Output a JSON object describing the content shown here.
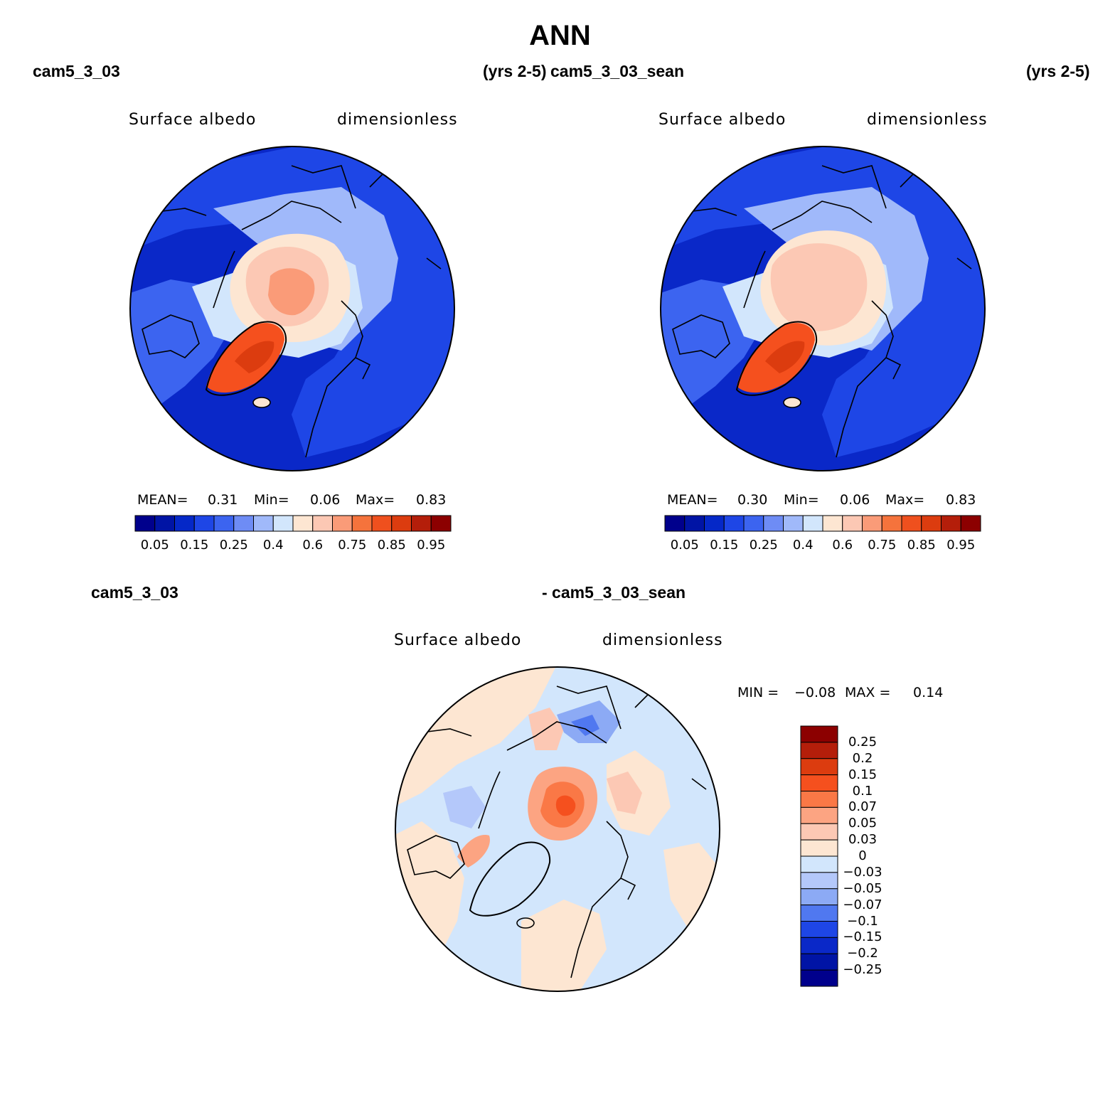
{
  "figure": {
    "title": "ANN",
    "top_left_case": "cam5_3_03",
    "top_left_years": "(yrs 2-5)",
    "top_right_case": "cam5_3_03_sean",
    "top_right_years": "(yrs 2-5)",
    "diff_left_case": "cam5_3_03",
    "diff_right_case": "- cam5_3_03_sean"
  },
  "panels": [
    {
      "variable": "Surface albedo",
      "units": "dimensionless",
      "mean_label": "MEAN=",
      "mean_value": "0.31",
      "min_label": "Min=",
      "min_value": "0.06",
      "max_label": "Max=",
      "max_value": "0.83"
    },
    {
      "variable": "Surface albedo",
      "units": "dimensionless",
      "mean_label": "MEAN=",
      "mean_value": "0.30",
      "min_label": "Min=",
      "min_value": "0.06",
      "max_label": "Max=",
      "max_value": "0.83"
    }
  ],
  "diff_panel": {
    "variable": "Surface albedo",
    "units": "dimensionless",
    "min_label": "MIN =",
    "min_value": "−0.08",
    "max_label": "MAX =",
    "max_value": "0.14"
  },
  "colorbar_main": {
    "colors": [
      "#00008c",
      "#0014a5",
      "#0528c8",
      "#1e46e6",
      "#3c64f0",
      "#6e8cf5",
      "#a0b9fa",
      "#d2e6fc",
      "#fde6d2",
      "#fcc8b4",
      "#fa9b78",
      "#f5733c",
      "#ef501e",
      "#dc3c0f",
      "#b41e0a",
      "#8c0000"
    ],
    "tick_labels": [
      "0.05",
      "0.15",
      "0.25",
      "0.4",
      "0.6",
      "0.75",
      "0.85",
      "0.95"
    ]
  },
  "colorbar_diff": {
    "colors_top_to_bottom": [
      "#8c0000",
      "#b41e0a",
      "#dc3c0f",
      "#f5501e",
      "#fa7846",
      "#fca482",
      "#fcc8b4",
      "#fde6d2",
      "#d2e6fc",
      "#b4c8fa",
      "#8caaf5",
      "#5078f0",
      "#1e46e6",
      "#0a28c8",
      "#0014a5",
      "#00008c"
    ],
    "tick_labels": [
      "0.25",
      "0.2",
      "0.15",
      "0.1",
      "0.07",
      "0.05",
      "0.03",
      "0",
      "−0.03",
      "−0.05",
      "−0.07",
      "−0.1",
      "−0.15",
      "−0.2",
      "−0.25"
    ]
  },
  "map_colors": {
    "ocean_low": "#0a28c8",
    "ocean_mid": "#1e46e6",
    "land_mid": "#6e8cf5",
    "land_light": "#a0b9fa",
    "land_pale": "#d2e6fc",
    "ice_pale": "#fde6d2",
    "ice_mid": "#fcc8b4",
    "ice_high": "#fa9b78",
    "greenland_high": "#f5501e",
    "greenland_top": "#ef501e",
    "coast": "#000000"
  }
}
